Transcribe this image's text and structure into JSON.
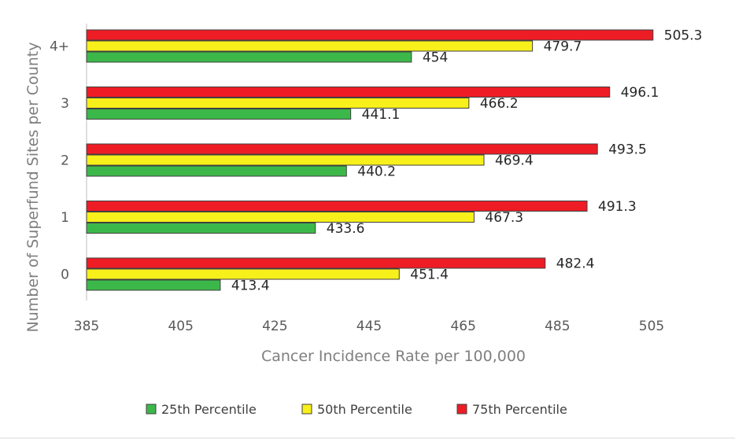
{
  "chart_data": {
    "type": "bar",
    "orientation": "horizontal",
    "title": "",
    "categories": [
      "4+",
      "3",
      "2",
      "1",
      "0"
    ],
    "series": [
      {
        "name": "75th Percentile",
        "color": "#ee1c25",
        "values": [
          505.3,
          496.1,
          493.5,
          491.3,
          482.4
        ],
        "labels": [
          "505.3",
          "496.1",
          "493.5",
          "491.3",
          "482.4"
        ]
      },
      {
        "name": "50th Percentile",
        "color": "#f7f01a",
        "values": [
          479.7,
          466.2,
          469.4,
          467.3,
          451.4
        ],
        "labels": [
          "479.7",
          "466.2",
          "469.4",
          "467.3",
          "451.4"
        ]
      },
      {
        "name": "25th Percentile",
        "color": "#3cb84a",
        "values": [
          454,
          441.1,
          440.2,
          433.6,
          413.4
        ],
        "labels": [
          "454",
          "441.1",
          "440.2",
          "433.6",
          "413.4"
        ]
      }
    ],
    "xlabel": "Cancer Incidence Rate per 100,000",
    "ylabel": "Number of Superfund Sites per County",
    "xlim": [
      385,
      505
    ],
    "xticks": [
      "385",
      "405",
      "425",
      "445",
      "465",
      "485",
      "505"
    ],
    "grid": false,
    "legend_position": "bottom"
  }
}
